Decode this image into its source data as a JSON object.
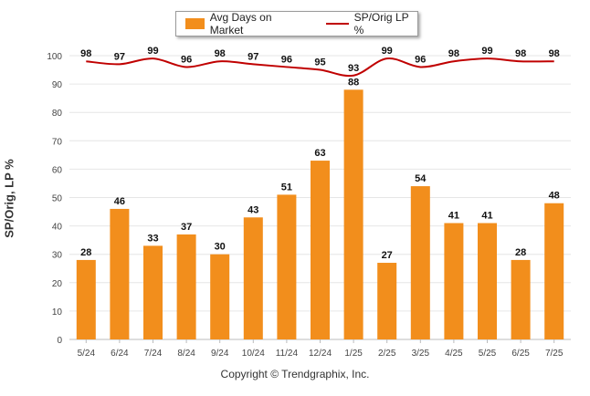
{
  "chart_data": {
    "type": "bar",
    "categories": [
      "5/24",
      "6/24",
      "7/24",
      "8/24",
      "9/24",
      "10/24",
      "11/24",
      "12/24",
      "1/25",
      "2/25",
      "3/25",
      "4/25",
      "5/25",
      "6/25",
      "7/25"
    ],
    "series": [
      {
        "name": "Avg Days on Market",
        "type": "bar",
        "color": "#F28E1C",
        "values": [
          28,
          46,
          33,
          37,
          30,
          43,
          51,
          63,
          88,
          27,
          54,
          41,
          41,
          28,
          48
        ]
      },
      {
        "name": "SP/Orig LP %",
        "type": "line",
        "color": "#C00000",
        "values": [
          98,
          97,
          99,
          96,
          98,
          97,
          96,
          95,
          93,
          99,
          96,
          98,
          99,
          98,
          98
        ]
      }
    ],
    "ylabel": "SP/Orig, LP %",
    "ylim": [
      0,
      100
    ],
    "yticks": [
      0,
      10,
      20,
      30,
      40,
      50,
      60,
      70,
      80,
      90,
      100
    ],
    "grid": true,
    "legend_position": "top-center"
  },
  "legend": {
    "bar_label": "Avg Days on Market",
    "line_label": "SP/Orig LP %"
  },
  "footer": {
    "copyright": "Copyright © Trendgraphix, Inc."
  }
}
